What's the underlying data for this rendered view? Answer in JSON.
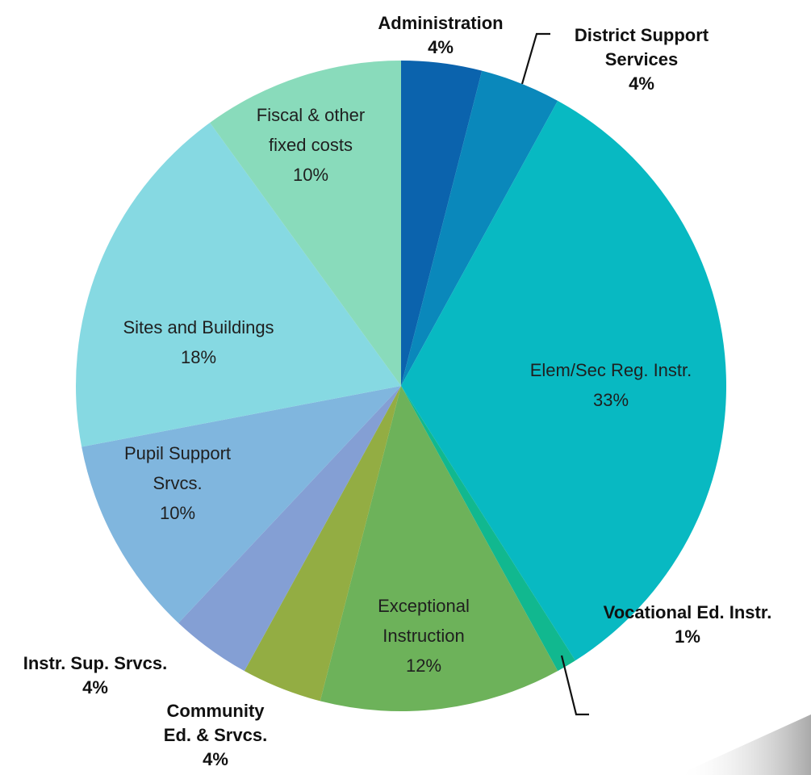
{
  "chart_data": {
    "type": "pie",
    "title": "",
    "start_angle_deg": 0,
    "direction": "clockwise",
    "slices": [
      {
        "label": [
          "Administration"
        ],
        "value": 4,
        "pct": "4%",
        "color": "#0b63ad",
        "label_style": "outside"
      },
      {
        "label": [
          "District Support",
          "Services"
        ],
        "value": 4,
        "pct": "4%",
        "color": "#0a88bb",
        "label_style": "outside"
      },
      {
        "label": [
          "Elem/Sec Reg. Instr."
        ],
        "value": 33,
        "pct": "33%",
        "color": "#08b9c2",
        "label_style": "inside"
      },
      {
        "label": [
          "Vocational Ed. Instr."
        ],
        "value": 1,
        "pct": "1%",
        "color": "#11b88f",
        "label_style": "outside"
      },
      {
        "label": [
          "Exceptional",
          "Instruction"
        ],
        "value": 12,
        "pct": "12%",
        "color": "#6db25a",
        "label_style": "inside"
      },
      {
        "label": [
          "Community",
          "Ed. & Srvcs."
        ],
        "value": 4,
        "pct": "4%",
        "color": "#93ad43",
        "label_style": "outside"
      },
      {
        "label": [
          "Instr. Sup. Srvcs."
        ],
        "value": 4,
        "pct": "4%",
        "color": "#849fd4",
        "label_style": "outside"
      },
      {
        "label": [
          "Pupil Support",
          "Srvcs."
        ],
        "value": 10,
        "pct": "10%",
        "color": "#80b6de",
        "label_style": "inside"
      },
      {
        "label": [
          "Sites and Buildings"
        ],
        "value": 18,
        "pct": "18%",
        "color": "#86d9e2",
        "label_style": "inside"
      },
      {
        "label": [
          "Fiscal & other",
          "fixed costs"
        ],
        "value": 10,
        "pct": "10%",
        "color": "#89dbbb",
        "label_style": "inside"
      }
    ]
  }
}
